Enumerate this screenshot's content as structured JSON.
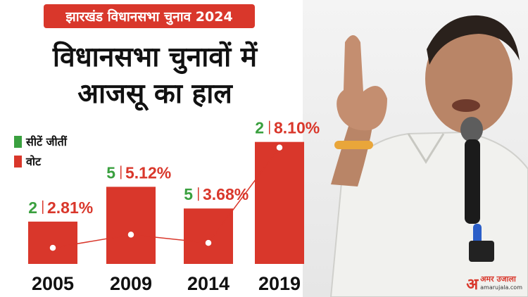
{
  "tag": "झारखंड विधानसभा चुनाव 2024",
  "headline": [
    "विधानसभा चुनावों में",
    "आजसू का हाल"
  ],
  "legend": [
    {
      "label": "सीटें जीतीं",
      "color": "#3aa03f"
    },
    {
      "label": "वोट",
      "color": "#d9372b"
    }
  ],
  "logo": {
    "mark": "अ",
    "name": "अमर उजाला",
    "url": "amarujala.com"
  },
  "chart_data": {
    "type": "bar",
    "categories": [
      "2005",
      "2009",
      "2014",
      "2019"
    ],
    "series": [
      {
        "name": "सीटें जीतीं",
        "values": [
          2,
          5,
          5,
          2
        ],
        "labels": [
          "2",
          "5",
          "5",
          "2"
        ]
      },
      {
        "name": "वोट",
        "values": [
          2.81,
          5.12,
          3.68,
          8.1
        ],
        "labels": [
          "2.81%",
          "5.12%",
          "3.68%",
          "8.10%"
        ]
      }
    ],
    "bar_color": "#d9372b",
    "line_color": "#d9372b",
    "grid": false,
    "legend_position": "left"
  }
}
